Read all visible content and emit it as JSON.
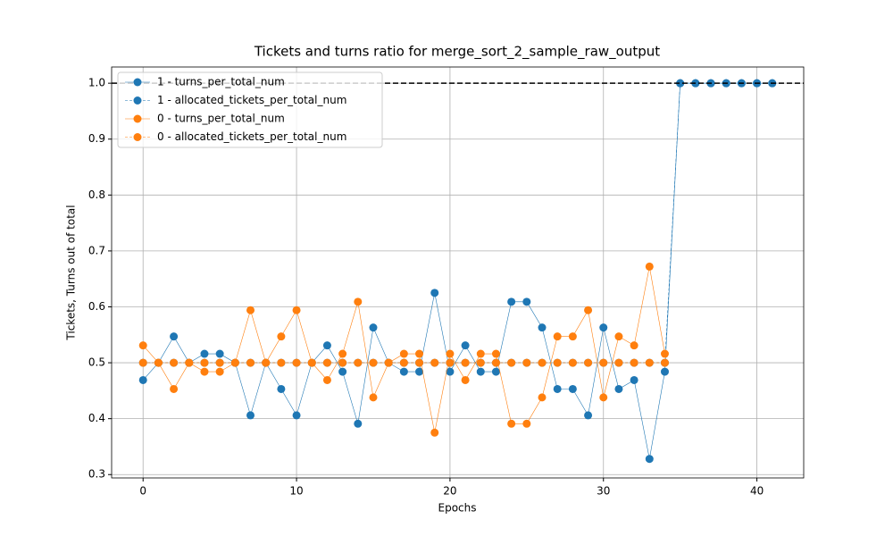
{
  "chart_data": {
    "type": "line",
    "title": "Tickets and turns ratio for merge_sort_2_sample_raw_output",
    "xlabel": "Epochs",
    "ylabel": "Tickets, Turns out of total",
    "x": [
      0,
      1,
      2,
      3,
      4,
      5,
      6,
      7,
      8,
      9,
      10,
      11,
      12,
      13,
      14,
      15,
      16,
      17,
      18,
      19,
      20,
      21,
      22,
      23,
      24,
      25,
      26,
      27,
      28,
      29,
      30,
      31,
      32,
      33,
      34,
      35,
      36,
      37,
      38,
      39,
      40,
      41
    ],
    "series": [
      {
        "name": "1 - turns_per_total_num",
        "color": "#1f77b4",
        "dash": "none",
        "values": [
          0.469,
          0.5,
          0.547,
          0.5,
          0.516,
          0.516,
          0.5,
          0.406,
          0.5,
          0.453,
          0.406,
          0.5,
          0.531,
          0.484,
          0.391,
          0.563,
          0.5,
          0.484,
          0.484,
          0.625,
          0.484,
          0.531,
          0.484,
          0.484,
          0.609,
          0.609,
          0.563,
          0.453,
          0.453,
          0.406,
          0.563,
          0.453,
          0.469,
          0.328,
          0.484,
          1,
          1,
          1,
          1,
          1,
          1,
          1
        ]
      },
      {
        "name": "1 - allocated_tickets_per_total_num",
        "color": "#1f77b4",
        "dash": "3 2",
        "values": [
          0.5,
          0.5,
          0.5,
          0.5,
          0.5,
          0.5,
          0.5,
          0.5,
          0.5,
          0.5,
          0.5,
          0.5,
          0.5,
          0.5,
          0.5,
          0.5,
          0.5,
          0.5,
          0.5,
          0.5,
          0.5,
          0.5,
          0.5,
          0.5,
          0.5,
          0.5,
          0.5,
          0.5,
          0.5,
          0.5,
          0.5,
          0.5,
          0.5,
          0.5,
          0.5,
          1,
          1,
          1,
          1,
          1,
          1,
          1
        ]
      },
      {
        "name": "0 - turns_per_total_num",
        "color": "#ff7f0e",
        "dash": "none",
        "values": [
          0.531,
          0.5,
          0.453,
          0.5,
          0.484,
          0.484,
          0.5,
          0.594,
          0.5,
          0.547,
          0.594,
          0.5,
          0.469,
          0.516,
          0.609,
          0.438,
          0.5,
          0.516,
          0.516,
          0.375,
          0.516,
          0.469,
          0.516,
          0.516,
          0.391,
          0.391,
          0.438,
          0.547,
          0.547,
          0.594,
          0.438,
          0.547,
          0.531,
          0.672,
          0.516,
          null,
          null,
          null,
          null,
          null,
          null,
          null
        ]
      },
      {
        "name": "0 - allocated_tickets_per_total_num",
        "color": "#ff7f0e",
        "dash": "3 2",
        "values": [
          0.5,
          0.5,
          0.5,
          0.5,
          0.5,
          0.5,
          0.5,
          0.5,
          0.5,
          0.5,
          0.5,
          0.5,
          0.5,
          0.5,
          0.5,
          0.5,
          0.5,
          0.5,
          0.5,
          0.5,
          0.5,
          0.5,
          0.5,
          0.5,
          0.5,
          0.5,
          0.5,
          0.5,
          0.5,
          0.5,
          0.5,
          0.5,
          0.5,
          0.5,
          0.5,
          null,
          null,
          null,
          null,
          null,
          null,
          null
        ]
      }
    ],
    "reference_line": {
      "value": 1,
      "color": "#000000"
    },
    "xlim": [
      -2.05,
      43.05
    ],
    "ylim": [
      0.294,
      1.029
    ],
    "xticks": [
      0,
      10,
      20,
      30,
      40
    ],
    "yticks": [
      0.3,
      0.4,
      0.5,
      0.6,
      0.7,
      0.8,
      0.9,
      {
        "value": 1,
        "label": "1.0"
      }
    ],
    "grid": true,
    "legend": "upper-left"
  }
}
